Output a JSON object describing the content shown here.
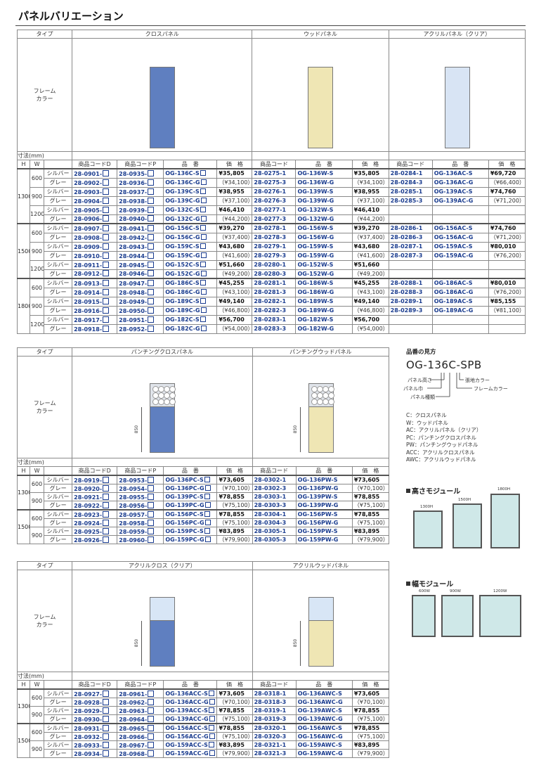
{
  "page_title": "パネルバリエーション",
  "labels": {
    "type": "タイプ",
    "frame": "フレーム",
    "color": "カラー",
    "dim": "寸法(mm)",
    "H": "H",
    "W": "W",
    "silver": "シルバー",
    "gray": "グレー",
    "code_d": "商品コードD",
    "code_p": "商品コードP",
    "code": "商品コード",
    "model": "品　番",
    "price": "価　格",
    "dim850": "850"
  },
  "sec1": {
    "headers": [
      "クロスパネル",
      "ウッドパネル",
      "アクリルパネル（クリア）"
    ],
    "groups": [
      {
        "h": "1300",
        "rows": [
          {
            "w": "600",
            "s": [
              "28-0901-",
              "28-0935-",
              "OG-136C-S",
              "¥35,805",
              "28-0275-1",
              "OG-136W-S",
              "¥35,805",
              "28-0284-1",
              "OG-136AC-S",
              "¥69,720"
            ],
            "g": [
              "28-0902-",
              "28-0936-",
              "OG-136C-G",
              "（¥34,100）",
              "28-0275-3",
              "OG-136W-G",
              "（¥34,100）",
              "28-0284-3",
              "OG-136AC-G",
              "（¥66,400）"
            ]
          },
          {
            "w": "900",
            "s": [
              "28-0903-",
              "28-0937-",
              "OG-139C-S",
              "¥38,955",
              "28-0276-1",
              "OG-139W-S",
              "¥38,955",
              "28-0285-1",
              "OG-139AC-S",
              "¥74,760"
            ],
            "g": [
              "28-0904-",
              "28-0938-",
              "OG-139C-G",
              "（¥37,100）",
              "28-0276-3",
              "OG-139W-G",
              "（¥37,100）",
              "28-0285-3",
              "OG-139AC-G",
              "（¥71,200）"
            ]
          },
          {
            "w": "1200",
            "s": [
              "28-0905-",
              "28-0939-",
              "OG-132C-S",
              "¥46,410",
              "28-0277-1",
              "OG-132W-S",
              "¥46,410",
              "",
              "",
              ""
            ],
            "g": [
              "28-0906-",
              "28-0940-",
              "OG-132C-G",
              "（¥44,200）",
              "28-0277-3",
              "OG-132W-G",
              "（¥44,200）",
              "",
              "",
              ""
            ]
          }
        ]
      },
      {
        "h": "1500",
        "rows": [
          {
            "w": "600",
            "s": [
              "28-0907-",
              "28-0941-",
              "OG-156C-S",
              "¥39,270",
              "28-0278-1",
              "OG-156W-S",
              "¥39,270",
              "28-0286-1",
              "OG-156AC-S",
              "¥74,760"
            ],
            "g": [
              "28-0908-",
              "28-0942-",
              "OG-156C-G",
              "（¥37,400）",
              "28-0278-3",
              "OG-156W-G",
              "（¥37,400）",
              "28-0286-3",
              "OG-156AC-G",
              "（¥71,200）"
            ]
          },
          {
            "w": "900",
            "s": [
              "28-0909-",
              "28-0943-",
              "OG-159C-S",
              "¥43,680",
              "28-0279-1",
              "OG-159W-S",
              "¥43,680",
              "28-0287-1",
              "OG-159AC-S",
              "¥80,010"
            ],
            "g": [
              "28-0910-",
              "28-0944-",
              "OG-159C-G",
              "（¥41,600）",
              "28-0279-3",
              "OG-159W-G",
              "（¥41,600）",
              "28-0287-3",
              "OG-159AC-G",
              "（¥76,200）"
            ]
          },
          {
            "w": "1200",
            "s": [
              "28-0911-",
              "28-0945-",
              "OG-152C-S",
              "¥51,660",
              "28-0280-1",
              "OG-152W-S",
              "¥51,660",
              "",
              "",
              ""
            ],
            "g": [
              "28-0912-",
              "28-0946-",
              "OG-152C-G",
              "（¥49,200）",
              "28-0280-3",
              "OG-152W-G",
              "（¥49,200）",
              "",
              "",
              ""
            ]
          }
        ]
      },
      {
        "h": "1800",
        "rows": [
          {
            "w": "600",
            "s": [
              "28-0913-",
              "28-0947-",
              "OG-186C-S",
              "¥45,255",
              "28-0281-1",
              "OG-186W-S",
              "¥45,255",
              "28-0288-1",
              "OG-186AC-S",
              "¥80,010"
            ],
            "g": [
              "28-0914-",
              "28-0948-",
              "OG-186C-G",
              "（¥43,100）",
              "28-0281-3",
              "OG-186W-G",
              "（¥43,100）",
              "28-0288-3",
              "OG-186AC-G",
              "（¥76,200）"
            ]
          },
          {
            "w": "900",
            "s": [
              "28-0915-",
              "28-0949-",
              "OG-189C-S",
              "¥49,140",
              "28-0282-1",
              "OG-189W-S",
              "¥49,140",
              "28-0289-1",
              "OG-189AC-S",
              "¥85,155"
            ],
            "g": [
              "28-0916-",
              "28-0950-",
              "OG-189C-G",
              "（¥46,800）",
              "28-0282-3",
              "OG-189W-G",
              "（¥46,800）",
              "28-0289-3",
              "OG-189AC-G",
              "（¥81,100）"
            ]
          },
          {
            "w": "1200",
            "s": [
              "28-0917-",
              "28-0951-",
              "OG-182C-S",
              "¥56,700",
              "28-0283-1",
              "OG-182W-S",
              "¥56,700",
              "",
              "",
              ""
            ],
            "g": [
              "28-0918-",
              "28-0952-",
              "OG-182C-G",
              "（¥54,000）",
              "28-0283-3",
              "OG-182W-G",
              "（¥54,000）",
              "",
              "",
              ""
            ]
          }
        ]
      }
    ]
  },
  "sec2": {
    "headers": [
      "パンチングクロスパネル",
      "パンチングウッドパネル"
    ],
    "groups": [
      {
        "h": "1300",
        "rows": [
          {
            "w": "600",
            "s": [
              "28-0919-",
              "28-0953-",
              "OG-136PC-S",
              "¥73,605",
              "28-0302-1",
              "OG-136PW-S",
              "¥73,605"
            ],
            "g": [
              "28-0920-",
              "28-0954-",
              "OG-136PC-G",
              "（¥70,100）",
              "28-0302-3",
              "OG-136PW-G",
              "（¥70,100）"
            ]
          },
          {
            "w": "900",
            "s": [
              "28-0921-",
              "28-0955-",
              "OG-139PC-S",
              "¥78,855",
              "28-0303-1",
              "OG-139PW-S",
              "¥78,855"
            ],
            "g": [
              "28-0922-",
              "28-0956-",
              "OG-139PC-G",
              "（¥75,100）",
              "28-0303-3",
              "OG-139PW-G",
              "（¥75,100）"
            ]
          }
        ]
      },
      {
        "h": "1500",
        "rows": [
          {
            "w": "600",
            "s": [
              "28-0923-",
              "28-0957-",
              "OG-156PC-S",
              "¥78,855",
              "28-0304-1",
              "OG-156PW-S",
              "¥78,855"
            ],
            "g": [
              "28-0924-",
              "28-0958-",
              "OG-156PC-G",
              "（¥75,100）",
              "28-0304-3",
              "OG-156PW-G",
              "（¥75,100）"
            ]
          },
          {
            "w": "900",
            "s": [
              "28-0925-",
              "28-0959-",
              "OG-159PC-S",
              "¥83,895",
              "28-0305-1",
              "OG-159PW-S",
              "¥83,895"
            ],
            "g": [
              "28-0926-",
              "28-0960-",
              "OG-159PC-G",
              "（¥79,900）",
              "28-0305-3",
              "OG-159PW-G",
              "（¥79,900）"
            ]
          }
        ]
      }
    ]
  },
  "sec3": {
    "headers": [
      "アクリルクロス（クリア）",
      "アクリルウッドパネル"
    ],
    "groups": [
      {
        "h": "1300",
        "rows": [
          {
            "w": "600",
            "s": [
              "28-0927-",
              "28-0961-",
              "OG-136ACC-S",
              "¥73,605",
              "28-0318-1",
              "OG-136AWC-S",
              "¥73,605"
            ],
            "g": [
              "28-0928-",
              "28-0962-",
              "OG-136ACC-G",
              "（¥70,100）",
              "28-0318-3",
              "OG-136AWC-G",
              "（¥70,100）"
            ]
          },
          {
            "w": "900",
            "s": [
              "28-0929-",
              "28-0963-",
              "OG-139ACC-S",
              "¥78,855",
              "28-0319-1",
              "OG-139AWC-S",
              "¥78,855"
            ],
            "g": [
              "28-0930-",
              "28-0964-",
              "OG-139ACC-G",
              "（¥75,100）",
              "28-0319-3",
              "OG-139AWC-G",
              "（¥75,100）"
            ]
          }
        ]
      },
      {
        "h": "1500",
        "rows": [
          {
            "w": "600",
            "s": [
              "28-0931-",
              "28-0965-",
              "OG-156ACC-S",
              "¥78,855",
              "28-0320-1",
              "OG-156AWC-S",
              "¥78,855"
            ],
            "g": [
              "28-0932-",
              "28-0966-",
              "OG-156ACC-G",
              "（¥75,100）",
              "28-0320-3",
              "OG-156AWC-G",
              "（¥75,100）"
            ]
          },
          {
            "w": "900",
            "s": [
              "28-0933-",
              "28-0967-",
              "OG-159ACC-S",
              "¥83,895",
              "28-0321-1",
              "OG-159AWC-S",
              "¥83,895"
            ],
            "g": [
              "28-0934-",
              "28-0968-",
              "OG-159ACC-G",
              "（¥79,900）",
              "28-0321-3",
              "OG-159AWC-G",
              "（¥79,900）"
            ]
          }
        ]
      }
    ]
  },
  "naming": {
    "title": "品番の見方",
    "code": "OG-136C-SPB",
    "parts": [
      "パネル高さ",
      "パネル巾",
      "パネル種類",
      "張地カラー",
      "フレームカラー"
    ],
    "legend": [
      "C：クロスパネル",
      "W：ウッドパネル",
      "AC：アクリルパネル（クリア）",
      "PC：パンチングクロスパネル",
      "PW：パンチングウッドパネル",
      "ACC：アクリルクロスパネル",
      "AWC：アクリルウッドパネル"
    ]
  },
  "height_module": {
    "title": "高さモジュール",
    "labels": [
      "1300H",
      "1500H",
      "1800H"
    ]
  },
  "width_module": {
    "title": "幅モジュール",
    "labels": [
      "600W",
      "900W",
      "1200W"
    ]
  }
}
